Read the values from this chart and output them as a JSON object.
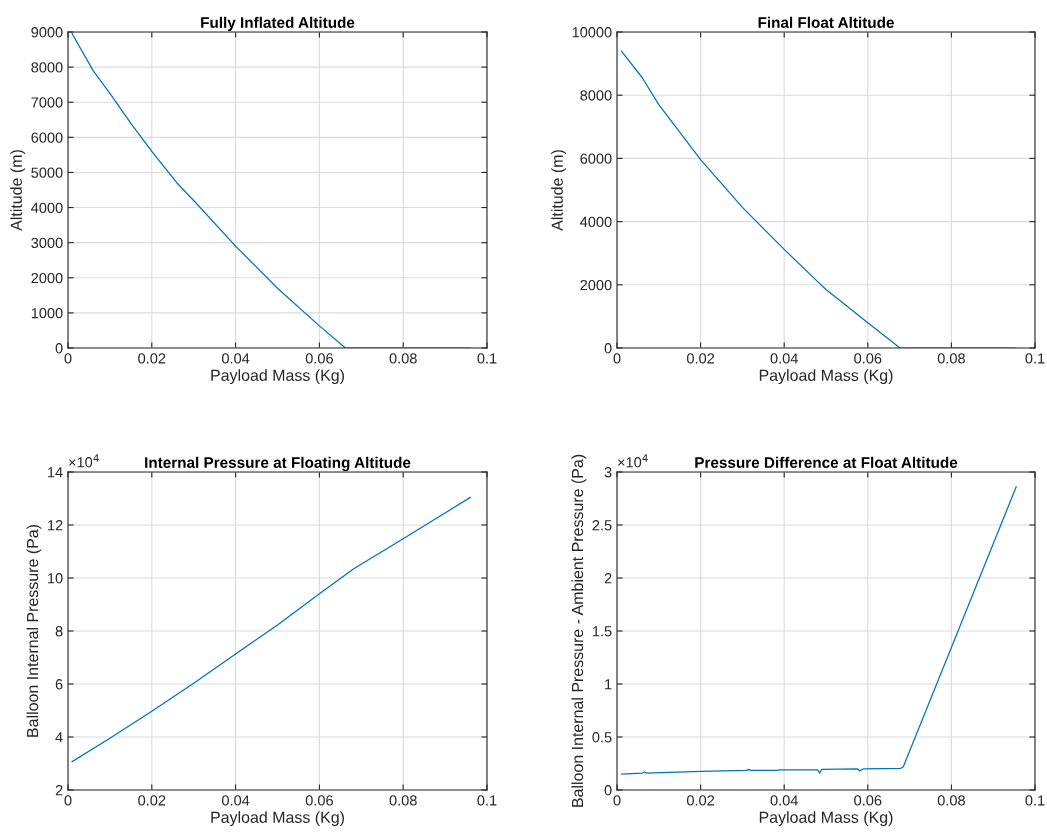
{
  "chart_data": [
    {
      "type": "line",
      "title": "Fully Inflated Altitude",
      "xlabel": "Payload Mass (Kg)",
      "ylabel": "Altitude (m)",
      "xlim": [
        0,
        0.1
      ],
      "xticks": [
        0,
        0.02,
        0.04,
        0.06,
        0.08,
        0.1
      ],
      "ylim": [
        0,
        9000
      ],
      "yticks": [
        0,
        1000,
        2000,
        3000,
        4000,
        5000,
        6000,
        7000,
        8000,
        9000
      ],
      "grid": true,
      "series": [
        {
          "color": "#0072bd",
          "x": [
            0.001,
            0.006,
            0.01,
            0.015,
            0.02,
            0.025,
            0.026,
            0.03,
            0.04,
            0.05,
            0.06,
            0.0662,
            0.096
          ],
          "values": [
            8950,
            7900,
            7250,
            6400,
            5600,
            4850,
            4700,
            4200,
            2900,
            1700,
            630,
            0,
            0
          ]
        }
      ]
    },
    {
      "type": "line",
      "title": "Final Float Altitude",
      "xlabel": "Payload Mass (Kg)",
      "ylabel": "Altitude (m)",
      "xlim": [
        0,
        0.1
      ],
      "xticks": [
        0,
        0.02,
        0.04,
        0.06,
        0.08,
        0.1
      ],
      "ylim": [
        0,
        10000
      ],
      "yticks": [
        0,
        2000,
        4000,
        6000,
        8000,
        10000
      ],
      "grid": true,
      "series": [
        {
          "color": "#0072bd",
          "x": [
            0.0011,
            0.006,
            0.01,
            0.02,
            0.03,
            0.04,
            0.048,
            0.05,
            0.06,
            0.0677,
            0.0952
          ],
          "values": [
            9390,
            8560,
            7700,
            5960,
            4450,
            3120,
            2100,
            1850,
            800,
            0,
            0
          ]
        }
      ]
    },
    {
      "type": "line",
      "title": "Internal Pressure at Floating Altitude",
      "xlabel": "Payload Mass (Kg)",
      "ylabel": "Balloon Internal Pressure (Pa)",
      "xlim": [
        0,
        0.1
      ],
      "xticks": [
        0,
        0.02,
        0.04,
        0.06,
        0.08,
        0.1
      ],
      "ylim": [
        2,
        14
      ],
      "yticks": [
        2,
        4,
        6,
        8,
        10,
        12,
        14
      ],
      "grid": true,
      "annotations": [
        "×10$^{4}$"
      ],
      "series": [
        {
          "color": "#0072bd",
          "x": [
            0.001,
            0.01,
            0.02,
            0.03,
            0.04,
            0.05,
            0.06,
            0.0682,
            0.08,
            0.096
          ],
          "values": [
            3.07,
            3.95,
            4.97,
            6.03,
            7.13,
            8.23,
            9.41,
            10.35,
            11.48,
            13.04
          ]
        }
      ]
    },
    {
      "type": "line",
      "title": "Pressure Difference at Float Altitude",
      "xlabel": "Payload Mass (Kg)",
      "ylabel": "Balloon Internal Pressure - Ambient Pressure (Pa)",
      "xlim": [
        0,
        0.1
      ],
      "xticks": [
        0,
        0.02,
        0.04,
        0.06,
        0.08,
        0.1
      ],
      "ylim": [
        0,
        3
      ],
      "yticks": [
        0,
        0.5,
        1,
        1.5,
        2,
        2.5,
        3
      ],
      "grid": true,
      "annotations": [
        "×10$^{4}$"
      ],
      "series": [
        {
          "color": "#0072bd",
          "x": [
            0.0011,
            0.006,
            0.0066,
            0.007,
            0.02,
            0.031,
            0.0315,
            0.032,
            0.038,
            0.039,
            0.048,
            0.0485,
            0.049,
            0.0575,
            0.058,
            0.059,
            0.0679,
            0.0685,
            0.0955
          ],
          "values": [
            0.15,
            0.16,
            0.17,
            0.16,
            0.175,
            0.185,
            0.195,
            0.185,
            0.185,
            0.19,
            0.19,
            0.16,
            0.195,
            0.2,
            0.18,
            0.2,
            0.205,
            0.22,
            2.86
          ]
        }
      ]
    }
  ]
}
